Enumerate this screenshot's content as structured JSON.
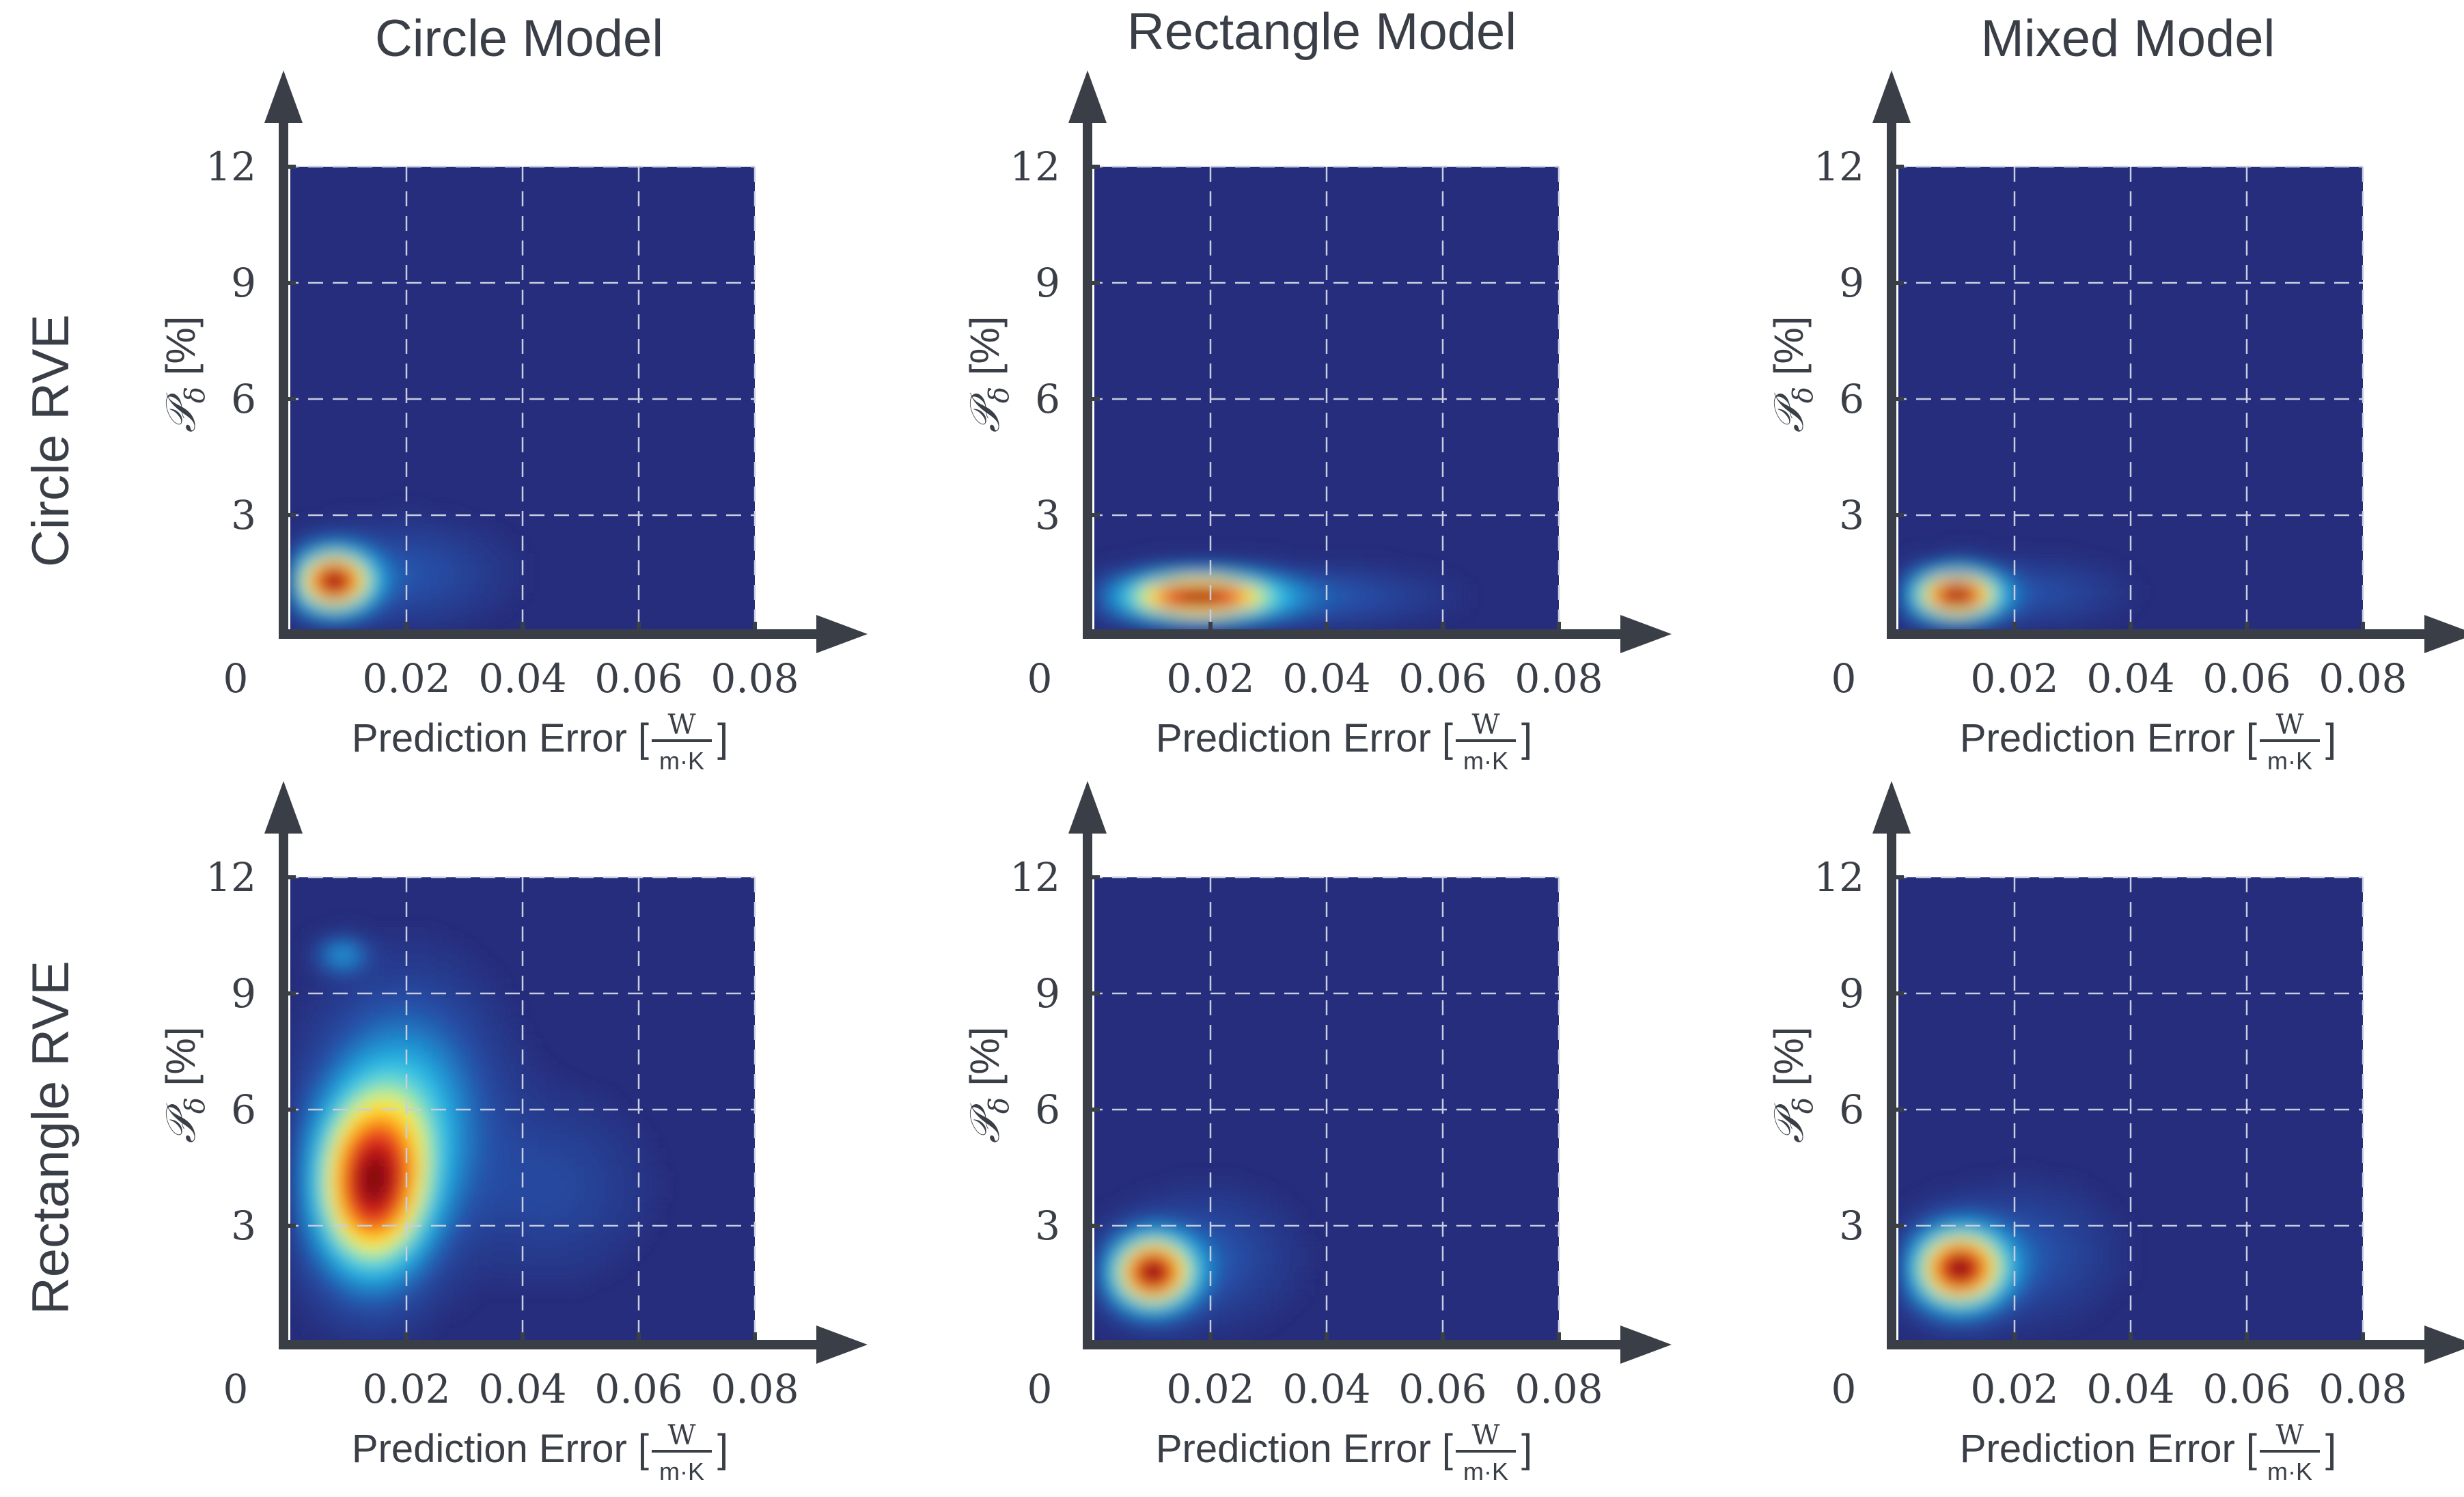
{
  "figure": {
    "column_titles": [
      "Circle Model",
      "Rectangle Model",
      "Mixed Model"
    ],
    "row_titles": [
      "Circle RVE",
      "Rectangle RVE"
    ],
    "origin_label": "0",
    "ylabel_main": "𝒫",
    "ylabel_sub": "δ",
    "ylabel_suffix": " [%]",
    "xlabel_prefix": "Prediction Error [",
    "xlabel_num": "W",
    "xlabel_den": "m·K",
    "xlabel_suffix": "]"
  },
  "colors": {
    "axis": "#3a3f47",
    "text": "#3a3f47",
    "background_field": "#262d7c",
    "grid": "#c8cde0",
    "colormap": [
      "#262d7c",
      "#2550a8",
      "#1e8fd0",
      "#33c4e8",
      "#8fe6b8",
      "#fff23a",
      "#ffb21a",
      "#f2481c",
      "#c8141a",
      "#7a0f10"
    ]
  },
  "chart_data": [
    {
      "type": "heatmap",
      "row": "Circle RVE",
      "column": "Circle Model",
      "xlim": [
        0,
        0.08
      ],
      "ylim": [
        0,
        12
      ],
      "xticks": [
        "0.02",
        "0.04",
        "0.06",
        "0.08"
      ],
      "yticks": [
        "3",
        "6",
        "9",
        "12"
      ],
      "grid": true,
      "density_peaks": [
        {
          "x": 0.0075,
          "y": 1.3,
          "sx": 0.0085,
          "sy": 1.0,
          "w": 1.0
        },
        {
          "x": 0.02,
          "y": 1.5,
          "sx": 0.02,
          "sy": 1.6,
          "w": 0.12
        }
      ]
    },
    {
      "type": "heatmap",
      "row": "Circle RVE",
      "column": "Rectangle Model",
      "xlim": [
        0,
        0.08
      ],
      "ylim": [
        0,
        12
      ],
      "xticks": [
        "0.02",
        "0.04",
        "0.06",
        "0.08"
      ],
      "yticks": [
        "3",
        "6",
        "9",
        "12"
      ],
      "grid": true,
      "density_peaks": [
        {
          "x": 0.018,
          "y": 0.9,
          "sx": 0.017,
          "sy": 0.75,
          "w": 1.0
        },
        {
          "x": 0.04,
          "y": 0.9,
          "sx": 0.024,
          "sy": 0.9,
          "w": 0.12
        }
      ]
    },
    {
      "type": "heatmap",
      "row": "Circle RVE",
      "column": "Mixed Model",
      "xlim": [
        0,
        0.08
      ],
      "ylim": [
        0,
        12
      ],
      "xticks": [
        "0.02",
        "0.04",
        "0.06",
        "0.08"
      ],
      "yticks": [
        "3",
        "6",
        "9",
        "12"
      ],
      "grid": true,
      "density_peaks": [
        {
          "x": 0.01,
          "y": 0.95,
          "sx": 0.0095,
          "sy": 0.8,
          "w": 1.0
        },
        {
          "x": 0.024,
          "y": 1.0,
          "sx": 0.018,
          "sy": 1.0,
          "w": 0.1
        }
      ]
    },
    {
      "type": "heatmap",
      "row": "Rectangle RVE",
      "column": "Circle Model",
      "xlim": [
        0,
        0.08
      ],
      "ylim": [
        0,
        12
      ],
      "xticks": [
        "0.02",
        "0.04",
        "0.06",
        "0.08"
      ],
      "yticks": [
        "3",
        "6",
        "9",
        "12"
      ],
      "grid": true,
      "density_peaks": [
        {
          "x": 0.014,
          "y": 4.0,
          "sx": 0.013,
          "sy": 3.0,
          "w": 1.0
        },
        {
          "x": 0.02,
          "y": 6.0,
          "sx": 0.018,
          "sy": 3.8,
          "w": 0.35
        },
        {
          "x": 0.009,
          "y": 10.0,
          "sx": 0.0055,
          "sy": 0.55,
          "w": 0.28
        },
        {
          "x": 0.045,
          "y": 4.0,
          "sx": 0.02,
          "sy": 2.8,
          "w": 0.1
        }
      ]
    },
    {
      "type": "heatmap",
      "row": "Rectangle RVE",
      "column": "Rectangle Model",
      "xlim": [
        0,
        0.08
      ],
      "ylim": [
        0,
        12
      ],
      "xticks": [
        "0.02",
        "0.04",
        "0.06",
        "0.08"
      ],
      "yticks": [
        "3",
        "6",
        "9",
        "12"
      ],
      "grid": true,
      "density_peaks": [
        {
          "x": 0.01,
          "y": 1.8,
          "sx": 0.009,
          "sy": 1.2,
          "w": 1.0
        },
        {
          "x": 0.02,
          "y": 2.2,
          "sx": 0.017,
          "sy": 2.0,
          "w": 0.12
        }
      ]
    },
    {
      "type": "heatmap",
      "row": "Rectangle RVE",
      "column": "Mixed Model",
      "xlim": [
        0,
        0.08
      ],
      "ylim": [
        0,
        12
      ],
      "xticks": [
        "0.02",
        "0.04",
        "0.06",
        "0.08"
      ],
      "yticks": [
        "3",
        "6",
        "9",
        "12"
      ],
      "grid": true,
      "density_peaks": [
        {
          "x": 0.0105,
          "y": 1.9,
          "sx": 0.01,
          "sy": 1.3,
          "w": 1.0
        },
        {
          "x": 0.022,
          "y": 2.3,
          "sx": 0.018,
          "sy": 2.0,
          "w": 0.12
        }
      ]
    }
  ]
}
